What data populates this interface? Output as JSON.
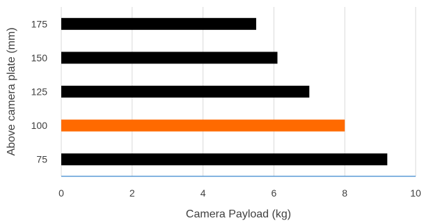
{
  "chart_data": {
    "type": "bar",
    "orientation": "horizontal",
    "title": "",
    "xlabel": "Camera Payload (kg)",
    "ylabel": "Above camera plate (mm)",
    "categories": [
      "75",
      "100",
      "125",
      "150",
      "175"
    ],
    "values": [
      9.2,
      8.0,
      7.0,
      6.1,
      5.5
    ],
    "bar_colors": [
      "#000000",
      "#FF6A00",
      "#000000",
      "#000000",
      "#000000"
    ],
    "xlim": [
      0,
      10
    ],
    "x_ticks": [
      "0",
      "2",
      "4",
      "6",
      "8",
      "10"
    ],
    "grid": "vertical",
    "legend": "none",
    "colors": {
      "grid": "#d9d9d9",
      "axis_line": "#5b9bd5",
      "text": "#404040"
    }
  }
}
